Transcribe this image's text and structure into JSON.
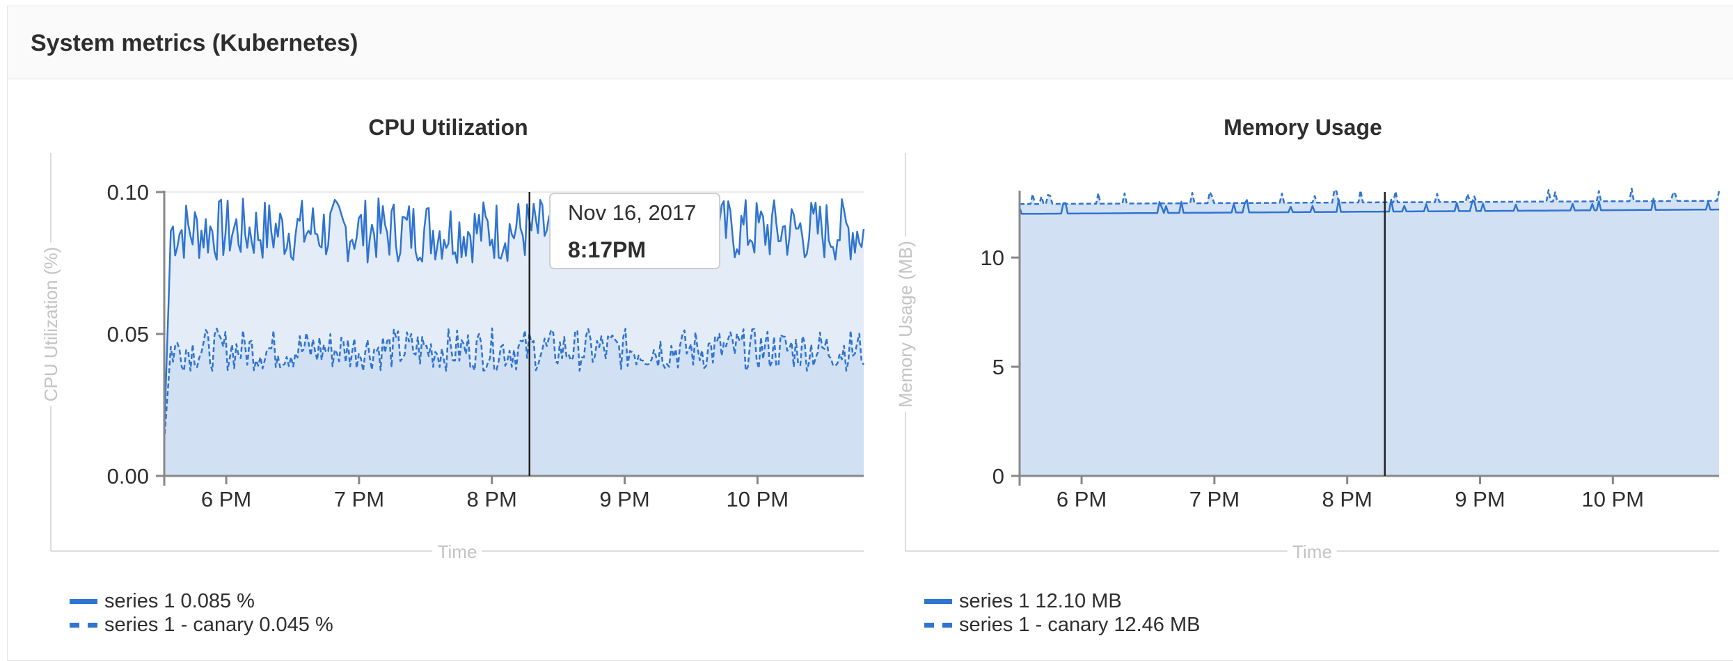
{
  "panel": {
    "title": "System metrics (Kubernetes)"
  },
  "colors": {
    "accent": "#2f74d0",
    "area_light": "#e4ecf8",
    "area_dark": "#d2e0f4",
    "axis": "#888888",
    "axis_label": "#c4c4c4",
    "grid": "#e9e9e9",
    "cursor": "#222222"
  },
  "tooltip": {
    "date": "Nov 16, 2017",
    "time": "8:17PM"
  },
  "cursor_time": "8:17PM",
  "legends": {
    "cpu": [
      {
        "name": "series 1",
        "value": "0.085 %",
        "style": "solid"
      },
      {
        "name": "series 1 - canary",
        "value": "0.045 %",
        "style": "dashed"
      }
    ],
    "memory": [
      {
        "name": "series 1",
        "value": "12.10 MB",
        "style": "solid"
      },
      {
        "name": "series 1 - canary",
        "value": "12.46 MB",
        "style": "dashed"
      }
    ]
  },
  "chart_data": [
    {
      "type": "area",
      "title": "CPU Utilization",
      "xlabel": "Time",
      "ylabel": "CPU Utilization (%)",
      "x_range": [
        "5:32 PM",
        "10:48 PM"
      ],
      "ylim": [
        0,
        0.1
      ],
      "y_ticks": [
        "0.00",
        "0.05",
        "0.10"
      ],
      "x_ticks": [
        "6 PM",
        "7 PM",
        "8 PM",
        "9 PM",
        "10 PM"
      ],
      "grid": true,
      "series": [
        {
          "name": "series 1",
          "style": "solid",
          "start_value": 0.015,
          "typical_value": 0.085,
          "noise_range": [
            0.075,
            0.098
          ]
        },
        {
          "name": "series 1 - canary",
          "style": "dashed",
          "start_value": 0.012,
          "typical_value": 0.045,
          "noise_range": [
            0.037,
            0.052
          ]
        }
      ]
    },
    {
      "type": "area",
      "title": "Memory Usage",
      "xlabel": "Time",
      "ylabel": "Memory Usage (MB)",
      "x_range": [
        "5:32 PM",
        "10:48 PM"
      ],
      "ylim": [
        0,
        13
      ],
      "y_ticks": [
        "0",
        "5",
        "10"
      ],
      "x_ticks": [
        "6 PM",
        "7 PM",
        "8 PM",
        "9 PM",
        "10 PM"
      ],
      "grid": true,
      "series": [
        {
          "name": "series 1",
          "style": "solid",
          "start_value": 12.0,
          "end_value": 12.2
        },
        {
          "name": "series 1 - canary",
          "style": "dashed",
          "start_value": 12.45,
          "end_value": 12.6
        }
      ]
    }
  ]
}
